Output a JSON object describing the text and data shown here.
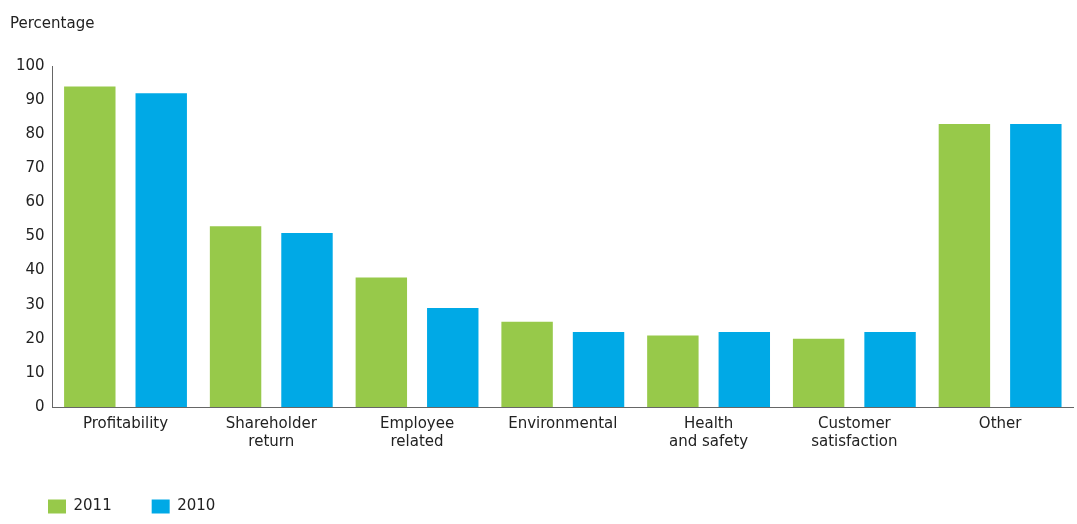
{
  "chart_data": {
    "type": "bar",
    "ylabel": "Percentage",
    "categories": [
      "Profitability",
      "Shareholder return",
      "Employee related",
      "Environmental",
      "Health and safety",
      "Customer satisfaction",
      "Other"
    ],
    "series": [
      {
        "name": "2011",
        "color": "#97c94a",
        "values": [
          94,
          53,
          38,
          25,
          21,
          20,
          83
        ]
      },
      {
        "name": "2010",
        "color": "#00a9e6",
        "values": [
          92,
          51,
          29,
          22,
          22,
          22,
          83
        ]
      }
    ],
    "ylim": [
      0,
      100
    ],
    "yticks": [
      0,
      10,
      20,
      30,
      40,
      50,
      60,
      70,
      80,
      90,
      100
    ],
    "grid": false,
    "legend": "bottom left"
  }
}
